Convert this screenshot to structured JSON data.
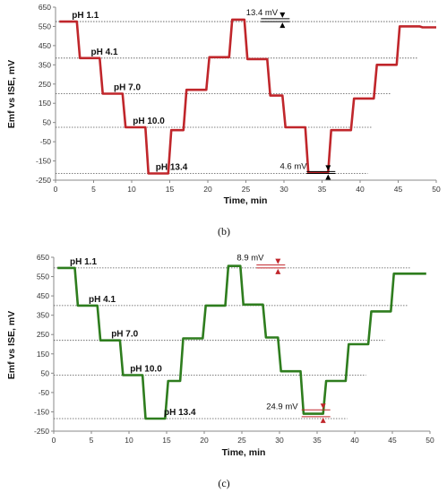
{
  "chart_data": [
    {
      "type": "line",
      "panel_label": "(b)",
      "xlabel": "Time, min",
      "ylabel": "Emf vs ISE, mV",
      "xlim": [
        0,
        50
      ],
      "ylim": [
        -250,
        650
      ],
      "xticks": [
        "0",
        "5",
        "10",
        "15",
        "20",
        "25",
        "30",
        "35",
        "40",
        "45",
        "50"
      ],
      "yticks": [
        "-250",
        "-150",
        "-50",
        "50",
        "150",
        "250",
        "350",
        "450",
        "550",
        "650"
      ],
      "series": [
        {
          "color": "#c0262b",
          "x": [
            0.5,
            2.8,
            3.2,
            5.8,
            6.2,
            8.8,
            9.2,
            11.8,
            12.2,
            14.8,
            15.2,
            16.8,
            17.2,
            19.8,
            20.2,
            22.8,
            23.2,
            24.8,
            25.2,
            27.8,
            28.2,
            29.8,
            30.2,
            32.8,
            33.2,
            35.8,
            36.2,
            38.8,
            39.2,
            41.8,
            42.2,
            44.8,
            45.2,
            47.8,
            48.2,
            50
          ],
          "y": [
            575,
            575,
            385,
            385,
            200,
            200,
            25,
            25,
            -215,
            -215,
            10,
            10,
            220,
            220,
            390,
            390,
            585,
            585,
            380,
            380,
            190,
            190,
            25,
            25,
            -210,
            -210,
            10,
            10,
            175,
            175,
            350,
            350,
            550,
            550,
            545,
            545
          ]
        }
      ],
      "reference_lines": [
        {
          "y": 575,
          "x_end": 50
        },
        {
          "y": 385,
          "x_end": 47.5
        },
        {
          "y": 200,
          "x_end": 44
        },
        {
          "y": 25,
          "x_end": 41.5
        },
        {
          "y": -215,
          "x_end": 41
        }
      ],
      "annotations": [
        {
          "text": "pH 1.1",
          "x": 2.5,
          "y": 575
        },
        {
          "text": "pH 4.1",
          "x": 5,
          "y": 385
        },
        {
          "text": "pH 7.0",
          "x": 8,
          "y": 200
        },
        {
          "text": "pH 10.0",
          "x": 10.5,
          "y": 25
        },
        {
          "text": "pH 13.4",
          "x": 13.5,
          "y": -215
        },
        {
          "text": "13.4 mV",
          "x": 29.5,
          "y": 590
        },
        {
          "text": "4.6 mV",
          "x": 33,
          "y": -210
        }
      ]
    },
    {
      "type": "line",
      "panel_label": "(c)",
      "xlabel": "Time, min",
      "ylabel": "Emf vs ISE, mV",
      "xlim": [
        0,
        50
      ],
      "ylim": [
        -250,
        650
      ],
      "xticks": [
        "0",
        "5",
        "10",
        "15",
        "20",
        "25",
        "30",
        "35",
        "40",
        "45",
        "50"
      ],
      "yticks": [
        "-250",
        "-150",
        "-50",
        "50",
        "150",
        "250",
        "350",
        "450",
        "550",
        "650"
      ],
      "series": [
        {
          "color": "#2e7d1e",
          "x": [
            0.5,
            2.8,
            3.2,
            5.8,
            6.2,
            8.8,
            9.2,
            11.8,
            12.2,
            14.8,
            15.2,
            16.8,
            17.2,
            19.8,
            20.2,
            22.8,
            23.2,
            24.8,
            25.2,
            27.8,
            28.2,
            29.8,
            30.2,
            32.8,
            33.2,
            35.8,
            36.2,
            38.8,
            39.2,
            41.8,
            42.2,
            44.8,
            45.2,
            47.8,
            48.2,
            49.5
          ],
          "y": [
            595,
            595,
            400,
            400,
            220,
            220,
            40,
            40,
            -185,
            -185,
            10,
            10,
            230,
            230,
            400,
            400,
            605,
            605,
            405,
            405,
            235,
            235,
            60,
            60,
            -160,
            -160,
            10,
            10,
            200,
            200,
            370,
            370,
            565,
            565,
            565,
            565
          ]
        }
      ],
      "reference_lines": [
        {
          "y": 595,
          "x_end": 47.5
        },
        {
          "y": 400,
          "x_end": 47
        },
        {
          "y": 220,
          "x_end": 44
        },
        {
          "y": 40,
          "x_end": 41.5
        },
        {
          "y": -185,
          "x_end": 39
        }
      ],
      "annotations": [
        {
          "text": "pH 1.1",
          "x": 2.5,
          "y": 595
        },
        {
          "text": "pH 4.1",
          "x": 5,
          "y": 400
        },
        {
          "text": "pH 7.0",
          "x": 8,
          "y": 220
        },
        {
          "text": "pH 10.0",
          "x": 10.5,
          "y": 40
        },
        {
          "text": "pH 13.4",
          "x": 15,
          "y": -185
        },
        {
          "text": "8.9 mV",
          "x": 28.5,
          "y": 615
        },
        {
          "text": "24.9 mV",
          "x": 33,
          "y": -155
        }
      ]
    }
  ]
}
